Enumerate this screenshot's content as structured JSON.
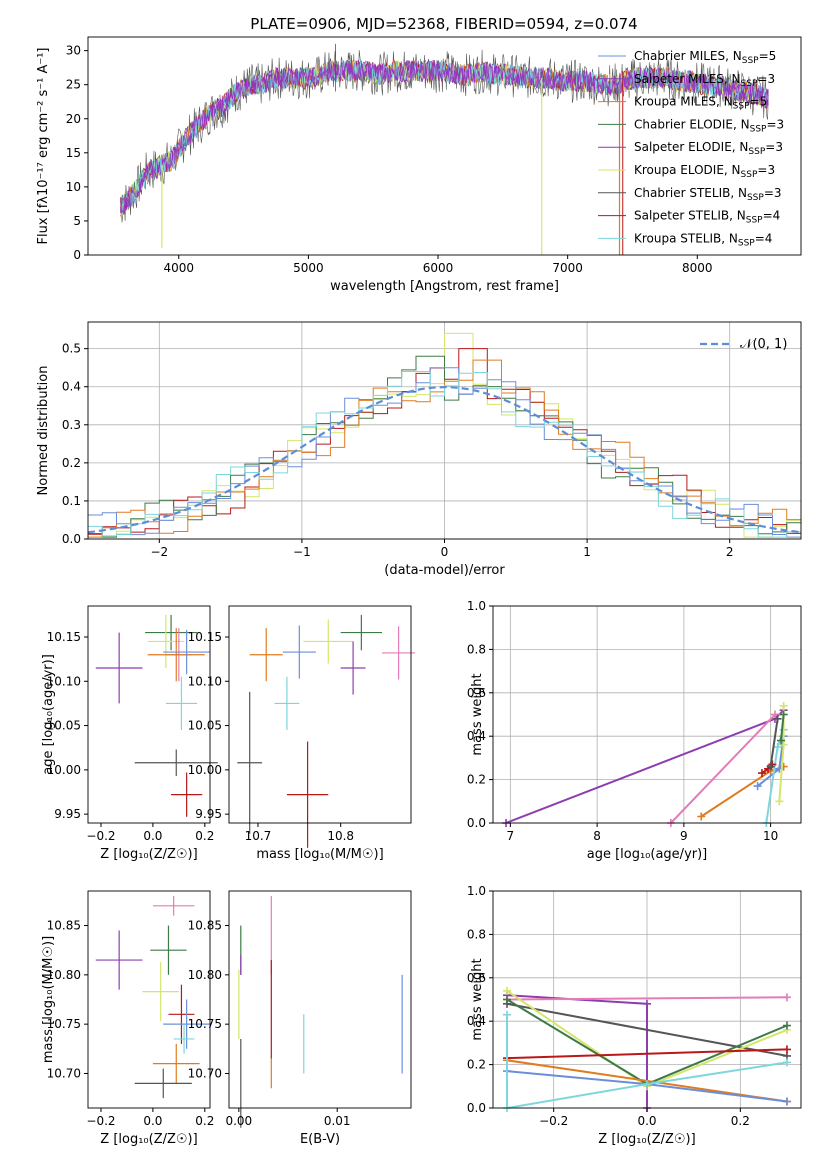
{
  "figure": {
    "title": "PLATE=0906, MJD=52368, FIBERID=0594, z=0.074",
    "colors": {
      "chabrier_miles": "#6a8fd8",
      "salpeter_miles": "#8e3db0",
      "kroupa_miles": "#e07b20",
      "chabrier_elodie": "#3d7a45",
      "salpeter_elodie": "#9b30c0",
      "kroupa_elodie": "#d4e66a",
      "chabrier_stelib": "#555555",
      "salpeter_stelib": "#b81818",
      "kroupa_stelib": "#7dd6dc",
      "normal_curve": "#5b8ed6",
      "extra_pink": "#e37cb7"
    }
  },
  "chart_data": [
    {
      "id": "spectrum",
      "type": "line",
      "title": "PLATE=0906, MJD=52368, FIBERID=0594, z=0.074",
      "xlabel": "wavelength [Angstrom, rest frame]",
      "ylabel": "Flux [fλ10⁻¹⁷ erg cm⁻² s⁻¹ A⁻¹]",
      "xlim": [
        3300,
        8800
      ],
      "ylim": [
        0,
        32
      ],
      "xticks": [
        4000,
        5000,
        6000,
        7000,
        8000
      ],
      "yticks": [
        0,
        5,
        10,
        15,
        20,
        25,
        30
      ],
      "grid": false,
      "legend_position": "right",
      "legend": [
        {
          "label": "Chabrier MILES, N",
          "sub": "SSP",
          "suffix": "=5"
        },
        {
          "label": "Salpeter MILES, N",
          "sub": "SSP",
          "suffix": "=3"
        },
        {
          "label": "Kroupa MILES, N",
          "sub": "SSP",
          "suffix": "=5"
        },
        {
          "label": "Chabrier ELODIE, N",
          "sub": "SSP",
          "suffix": "=3"
        },
        {
          "label": "Salpeter ELODIE, N",
          "sub": "SSP",
          "suffix": "=3"
        },
        {
          "label": "Kroupa ELODIE, N",
          "sub": "SSP",
          "suffix": "=3"
        },
        {
          "label": "Chabrier STELIB, N",
          "sub": "SSP",
          "suffix": "=3"
        },
        {
          "label": "Salpeter STELIB, N",
          "sub": "SSP",
          "suffix": "=4"
        },
        {
          "label": "Kroupa STELIB, N",
          "sub": "SSP",
          "suffix": "=4"
        }
      ],
      "envelope": {
        "x": [
          3550,
          3650,
          3750,
          3850,
          3950,
          4050,
          4150,
          4250,
          4350,
          4450,
          4550,
          4650,
          4750,
          4850,
          4950,
          5050,
          5150,
          5250,
          5350,
          5450,
          5550,
          5650,
          5750,
          5850,
          5950,
          6050,
          6150,
          6250,
          6350,
          6450,
          6550,
          6650,
          6750,
          6850,
          6950,
          7050,
          7150,
          7250,
          7350,
          7450,
          7550,
          7650,
          7750,
          7850,
          7950,
          8050,
          8150,
          8250,
          8350,
          8450,
          8550
        ],
        "y": [
          7,
          9,
          12,
          13,
          14,
          17,
          19,
          21,
          22,
          24,
          25,
          25,
          26,
          26,
          26,
          26,
          27,
          27,
          27,
          27,
          26.5,
          27,
          27,
          27,
          27,
          27,
          26.5,
          26.5,
          27,
          26.5,
          26.5,
          26,
          26,
          26,
          25.5,
          25.5,
          25.5,
          25,
          25,
          25.5,
          26,
          26,
          26,
          25.5,
          25.5,
          25,
          25,
          24.5,
          24,
          23.5,
          23
        ]
      },
      "dips": [
        {
          "x": 3870,
          "y": 1
        },
        {
          "x": 6800,
          "y": 0
        },
        {
          "x": 7400,
          "y": 0
        }
      ]
    },
    {
      "id": "residuals",
      "type": "histogram",
      "xlabel": "(data-model)/error",
      "ylabel": "Normed distribution",
      "xlim": [
        -2.5,
        2.5
      ],
      "ylim": [
        0,
        0.57
      ],
      "xticks": [
        -2,
        -1,
        0,
        1,
        2
      ],
      "yticks": [
        0.0,
        0.1,
        0.2,
        0.3,
        0.4,
        0.5
      ],
      "grid": true,
      "legend_position": "top-right",
      "legend": [
        {
          "label": "𝒩(0, 1)",
          "style": "dashed"
        }
      ],
      "bin_width": 0.1,
      "series": [
        {
          "name": "Kroupa ELODIE",
          "color_key": "kroupa_elodie",
          "peak": 0.54,
          "peak_x": 0.15
        },
        {
          "name": "Salpeter STELIB",
          "color_key": "salpeter_stelib",
          "peak": 0.5,
          "peak_x": 0.25
        },
        {
          "name": "Chabrier ELODIE",
          "color_key": "chabrier_elodie",
          "peak": 0.48,
          "peak_x": -0.05
        },
        {
          "name": "Kroupa MILES",
          "color_key": "kroupa_miles",
          "peak": 0.47,
          "peak_x": 0.35
        },
        {
          "name": "Chabrier MILES",
          "color_key": "chabrier_miles",
          "peak": 0.45,
          "peak_x": 0.05
        },
        {
          "name": "Kroupa STELIB",
          "color_key": "kroupa_stelib",
          "peak": 0.44,
          "peak_x": -0.15
        }
      ]
    },
    {
      "id": "age_vs_Z",
      "type": "scatter",
      "xlabel": "Z [log₁₀(Z/Z☉)]",
      "ylabel": "age [log₁₀(age/yr)]",
      "xlim": [
        -0.25,
        0.22
      ],
      "ylim": [
        9.94,
        10.185
      ],
      "xticks": [
        -0.2,
        0.0,
        0.2
      ],
      "yticks": [
        9.95,
        10.0,
        10.05,
        10.1,
        10.15
      ],
      "points": [
        {
          "color_key": "salpeter_miles",
          "x": -0.13,
          "xerr": 0.09,
          "y": 10.115,
          "yerr": 0.04
        },
        {
          "color_key": "chabrier_elodie",
          "x": 0.07,
          "xerr": 0.1,
          "y": 10.155,
          "yerr": 0.02
        },
        {
          "color_key": "kroupa_elodie",
          "x": 0.05,
          "xerr": 0.07,
          "y": 10.145,
          "yerr": 0.03
        },
        {
          "color_key": "extra_pink",
          "x": 0.1,
          "xerr": 0.05,
          "y": 10.13,
          "yerr": 0.03
        },
        {
          "color_key": "kroupa_miles",
          "x": 0.09,
          "xerr": 0.11,
          "y": 10.13,
          "yerr": 0.03
        },
        {
          "color_key": "chabrier_miles",
          "x": 0.13,
          "xerr": 0.09,
          "y": 10.133,
          "yerr": 0.025
        },
        {
          "color_key": "kroupa_stelib",
          "x": 0.11,
          "xerr": 0.06,
          "y": 10.075,
          "yerr": 0.03
        },
        {
          "color_key": "chabrier_stelib",
          "x": 0.09,
          "xerr": 0.16,
          "y": 10.008,
          "yerr": 0.015
        },
        {
          "color_key": "salpeter_stelib",
          "x": 0.13,
          "xerr": 0.06,
          "y": 9.972,
          "yerr": 0.025
        }
      ]
    },
    {
      "id": "age_vs_mass",
      "type": "scatter",
      "xlabel": "mass [log₁₀(M/M☉)]",
      "ylabel": "",
      "xlim": [
        10.665,
        10.885
      ],
      "ylim": [
        9.94,
        10.185
      ],
      "xticks": [
        10.7,
        10.8
      ],
      "yticks": [
        9.95,
        10.0,
        10.05,
        10.1,
        10.15
      ],
      "points": [
        {
          "color_key": "chabrier_elodie",
          "x": 10.825,
          "xerr": 0.025,
          "y": 10.155,
          "yerr": 0.02
        },
        {
          "color_key": "kroupa_elodie",
          "x": 10.785,
          "xerr": 0.03,
          "y": 10.145,
          "yerr": 0.025
        },
        {
          "color_key": "extra_pink",
          "x": 10.87,
          "xerr": 0.02,
          "y": 10.132,
          "yerr": 0.03
        },
        {
          "color_key": "kroupa_miles",
          "x": 10.71,
          "xerr": 0.02,
          "y": 10.13,
          "yerr": 0.03
        },
        {
          "color_key": "chabrier_miles",
          "x": 10.75,
          "xerr": 0.02,
          "y": 10.133,
          "yerr": 0.03
        },
        {
          "color_key": "salpeter_miles",
          "x": 10.815,
          "xerr": 0.015,
          "y": 10.115,
          "yerr": 0.03
        },
        {
          "color_key": "kroupa_stelib",
          "x": 10.735,
          "xerr": 0.015,
          "y": 10.075,
          "yerr": 0.03
        },
        {
          "color_key": "chabrier_stelib",
          "x": 10.69,
          "xerr": 0.015,
          "y": 10.008,
          "yerr": 0.08
        },
        {
          "color_key": "salpeter_stelib",
          "x": 10.76,
          "xerr": 0.025,
          "y": 9.972,
          "yerr": 0.06
        }
      ]
    },
    {
      "id": "weight_vs_age",
      "type": "line",
      "xlabel": "age [log₁₀(age/yr)]",
      "ylabel": "mass weight",
      "xlim": [
        6.8,
        10.35
      ],
      "ylim": [
        0,
        1
      ],
      "xticks": [
        7,
        8,
        9,
        10
      ],
      "yticks": [
        0.0,
        0.2,
        0.4,
        0.6,
        0.8,
        1.0
      ],
      "grid": true,
      "series": [
        {
          "color_key": "salpeter_miles",
          "x": [
            6.95,
            10.05,
            10.15
          ],
          "y": [
            0.0,
            0.48,
            0.52
          ]
        },
        {
          "color_key": "extra_pink",
          "x": [
            8.85,
            10.05,
            10.15
          ],
          "y": [
            0.0,
            0.5,
            0.5
          ]
        },
        {
          "color_key": "kroupa_miles",
          "x": [
            9.2,
            10.0,
            10.15
          ],
          "y": [
            0.03,
            0.24,
            0.26
          ]
        },
        {
          "color_key": "chabrier_miles",
          "x": [
            9.85,
            10.1,
            10.15
          ],
          "y": [
            0.17,
            0.25,
            0.4
          ]
        },
        {
          "color_key": "kroupa_stelib",
          "x": [
            9.95,
            10.08,
            10.15
          ],
          "y": [
            0.0,
            0.35,
            0.43
          ]
        },
        {
          "color_key": "kroupa_elodie",
          "x": [
            10.1,
            10.15,
            10.15
          ],
          "y": [
            0.1,
            0.36,
            0.54
          ]
        },
        {
          "color_key": "salpeter_stelib",
          "x": [
            9.9,
            9.97,
            10.02
          ],
          "y": [
            0.23,
            0.25,
            0.27
          ]
        },
        {
          "color_key": "chabrier_elodie",
          "x": [
            10.12,
            10.15
          ],
          "y": [
            0.38,
            0.5
          ]
        },
        {
          "color_key": "chabrier_stelib",
          "x": [
            10.0,
            10.08
          ],
          "y": [
            0.26,
            0.48
          ]
        }
      ]
    },
    {
      "id": "mass_vs_Z",
      "type": "scatter",
      "xlabel": "Z [log₁₀(Z/Z☉)]",
      "ylabel": "mass [log₁₀(M/M☉)]",
      "xlim": [
        -0.25,
        0.22
      ],
      "ylim": [
        10.665,
        10.885
      ],
      "xticks": [
        -0.2,
        0.0,
        0.2
      ],
      "yticks": [
        10.7,
        10.75,
        10.8,
        10.85
      ],
      "points": [
        {
          "color_key": "extra_pink",
          "x": 0.08,
          "xerr": 0.08,
          "y": 10.87,
          "yerr": 0.01
        },
        {
          "color_key": "chabrier_elodie",
          "x": 0.06,
          "xerr": 0.07,
          "y": 10.825,
          "yerr": 0.025
        },
        {
          "color_key": "salpeter_miles",
          "x": -0.13,
          "xerr": 0.09,
          "y": 10.815,
          "yerr": 0.03
        },
        {
          "color_key": "kroupa_elodie",
          "x": 0.03,
          "xerr": 0.07,
          "y": 10.783,
          "yerr": 0.03
        },
        {
          "color_key": "salpeter_stelib",
          "x": 0.11,
          "xerr": 0.05,
          "y": 10.76,
          "yerr": 0.03
        },
        {
          "color_key": "chabrier_miles",
          "x": 0.13,
          "xerr": 0.09,
          "y": 10.75,
          "yerr": 0.025
        },
        {
          "color_key": "kroupa_stelib",
          "x": 0.12,
          "xerr": 0.04,
          "y": 10.735,
          "yerr": 0.015
        },
        {
          "color_key": "kroupa_miles",
          "x": 0.09,
          "xerr": 0.09,
          "y": 10.71,
          "yerr": 0.02
        },
        {
          "color_key": "chabrier_stelib",
          "x": 0.04,
          "xerr": 0.11,
          "y": 10.69,
          "yerr": 0.015
        }
      ]
    },
    {
      "id": "mass_vs_ebv",
      "type": "scatter",
      "xlabel": "E(B-V)",
      "ylabel": "",
      "xlim": [
        -0.001,
        0.0175
      ],
      "ylim": [
        10.665,
        10.885
      ],
      "xticks": [
        0.0,
        0.01
      ],
      "yticks": [
        10.7,
        10.75,
        10.8,
        10.85
      ],
      "points": [
        {
          "color_key": "chabrier_elodie",
          "x": 0.0002,
          "y": 10.825,
          "yerr": 0.025
        },
        {
          "color_key": "salpeter_miles",
          "x": 0.0002,
          "y": 10.81,
          "yerr": 0.01
        },
        {
          "color_key": "kroupa_elodie",
          "x": 0.0,
          "y": 10.77,
          "yerr": 0.035
        },
        {
          "color_key": "chabrier_stelib",
          "x": 0.0002,
          "y": 10.69,
          "yerr": 0.045
        },
        {
          "color_key": "extra_pink",
          "x": 0.0033,
          "y": 10.84,
          "yerr": 0.04
        },
        {
          "color_key": "salpeter_stelib",
          "x": 0.0033,
          "y": 10.765,
          "yerr": 0.05
        },
        {
          "color_key": "kroupa_miles",
          "x": 0.0033,
          "y": 10.7,
          "yerr": 0.015
        },
        {
          "color_key": "kroupa_stelib",
          "x": 0.0066,
          "y": 10.73,
          "yerr": 0.03
        },
        {
          "color_key": "chabrier_miles",
          "x": 0.0166,
          "y": 10.75,
          "yerr": 0.05
        }
      ]
    },
    {
      "id": "weight_vs_Z",
      "type": "line",
      "xlabel": "Z [log₁₀(Z/Z☉)]",
      "ylabel": "mass weight",
      "xlim": [
        -0.33,
        0.33
      ],
      "ylim": [
        0,
        1
      ],
      "xticks": [
        -0.2,
        0.0,
        0.2
      ],
      "yticks": [
        0.0,
        0.2,
        0.4,
        0.6,
        0.8,
        1.0
      ],
      "grid": true,
      "series": [
        {
          "color_key": "salpeter_miles",
          "x": [
            -0.3,
            0.0,
            0.0
          ],
          "y": [
            0.52,
            0.48,
            0.0
          ]
        },
        {
          "color_key": "extra_pink",
          "x": [
            -0.3,
            0.3
          ],
          "y": [
            0.5,
            0.51
          ]
        },
        {
          "color_key": "chabrier_stelib",
          "x": [
            -0.3,
            0.3
          ],
          "y": [
            0.48,
            0.24
          ]
        },
        {
          "color_key": "kroupa_elodie",
          "x": [
            -0.3,
            0.0,
            0.3
          ],
          "y": [
            0.54,
            0.1,
            0.36
          ]
        },
        {
          "color_key": "chabrier_elodie",
          "x": [
            -0.3,
            0.0,
            0.3
          ],
          "y": [
            0.5,
            0.11,
            0.38
          ]
        },
        {
          "color_key": "salpeter_stelib",
          "x": [
            -0.3,
            0.3
          ],
          "y": [
            0.23,
            0.27
          ]
        },
        {
          "color_key": "kroupa_miles",
          "x": [
            -0.3,
            0.3
          ],
          "y": [
            0.22,
            0.03
          ]
        },
        {
          "color_key": "chabrier_miles",
          "x": [
            -0.3,
            0.0,
            0.3
          ],
          "y": [
            0.17,
            0.11,
            0.03
          ]
        },
        {
          "color_key": "kroupa_stelib",
          "x": [
            -0.3,
            -0.3,
            0.0,
            0.3
          ],
          "y": [
            0.43,
            0.0,
            0.11,
            0.21
          ]
        }
      ]
    }
  ]
}
